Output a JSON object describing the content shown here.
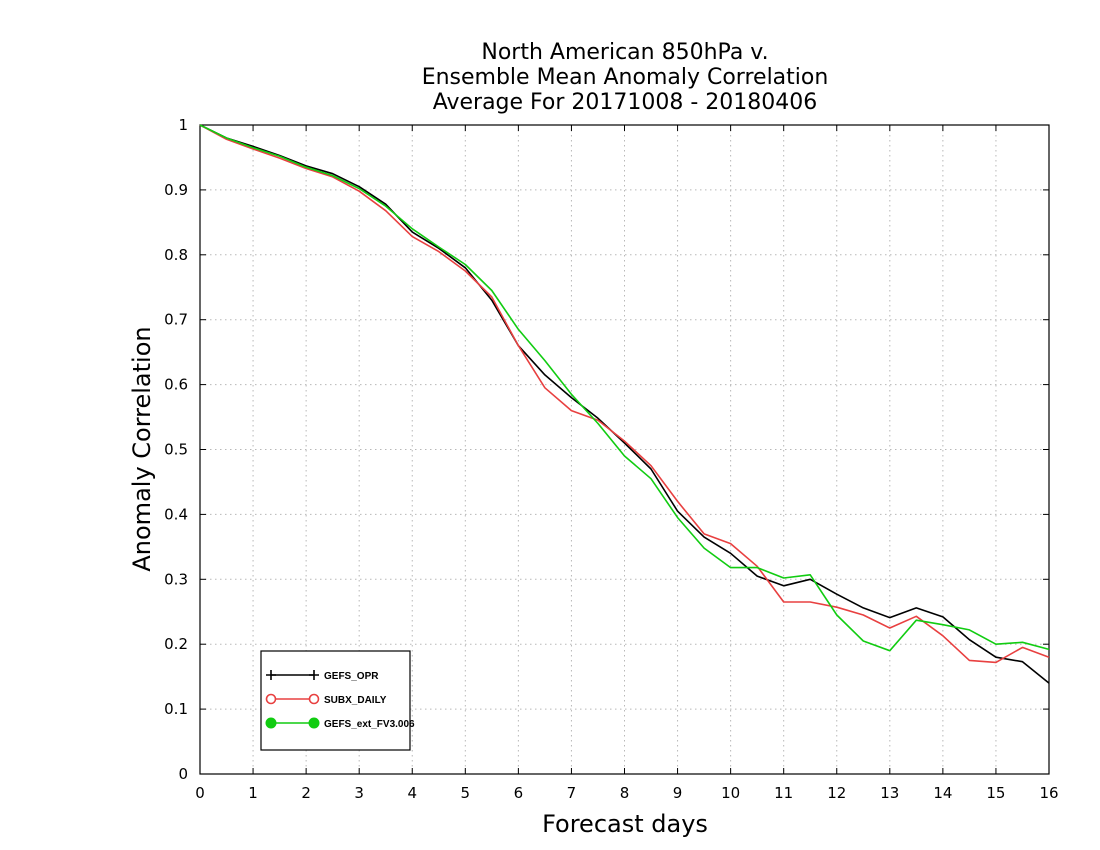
{
  "chart_data": {
    "type": "line",
    "title": [
      "North American 850hPa v.",
      "Ensemble Mean Anomaly Correlation",
      "Average For 20171008 - 20180406"
    ],
    "xlabel": "Forecast days",
    "ylabel": "Anomaly Correlation",
    "xlim": [
      0,
      16
    ],
    "ylim": [
      0,
      1
    ],
    "x_ticks": [
      "0",
      "1",
      "2",
      "3",
      "4",
      "5",
      "6",
      "7",
      "8",
      "9",
      "10",
      "11",
      "12",
      "13",
      "14",
      "15",
      "16"
    ],
    "y_ticks": [
      "0",
      "0.1",
      "0.2",
      "0.3",
      "0.4",
      "0.5",
      "0.6",
      "0.7",
      "0.8",
      "0.9",
      "1"
    ],
    "grid": true,
    "legend_position": "bottom-left",
    "x": [
      0,
      0.5,
      1,
      1.5,
      2,
      2.5,
      3,
      3.5,
      4,
      4.5,
      5,
      5.5,
      6,
      6.5,
      7,
      7.5,
      8,
      8.5,
      9,
      9.5,
      10,
      10.5,
      11,
      11.5,
      12,
      12.5,
      13,
      13.5,
      14,
      14.5,
      15,
      15.5,
      16
    ],
    "series": [
      {
        "name": "GEFS_OPR",
        "color": "#000000",
        "marker": "plus",
        "values": [
          1.0,
          0.98,
          0.967,
          0.953,
          0.937,
          0.925,
          0.905,
          0.878,
          0.835,
          0.81,
          0.78,
          0.73,
          0.66,
          0.615,
          0.58,
          0.548,
          0.51,
          0.47,
          0.405,
          0.365,
          0.34,
          0.305,
          0.29,
          0.3,
          0.277,
          0.256,
          0.241,
          0.256,
          0.242,
          0.207,
          0.18,
          0.173,
          0.14
        ]
      },
      {
        "name": "SUBX_DAILY",
        "color": "#e84040",
        "marker": "open-circle",
        "values": [
          1.0,
          0.978,
          0.963,
          0.949,
          0.933,
          0.92,
          0.898,
          0.868,
          0.828,
          0.805,
          0.775,
          0.735,
          0.66,
          0.595,
          0.56,
          0.545,
          0.513,
          0.475,
          0.42,
          0.37,
          0.355,
          0.32,
          0.265,
          0.265,
          0.257,
          0.245,
          0.225,
          0.243,
          0.213,
          0.175,
          0.172,
          0.195,
          0.18
        ]
      },
      {
        "name": "GEFS_ext_FV3.006",
        "color": "#11cc11",
        "marker": "filled-circle",
        "values": [
          1.0,
          0.98,
          0.965,
          0.952,
          0.935,
          0.922,
          0.902,
          0.875,
          0.84,
          0.812,
          0.785,
          0.745,
          0.685,
          0.637,
          0.585,
          0.54,
          0.49,
          0.455,
          0.395,
          0.348,
          0.318,
          0.318,
          0.302,
          0.307,
          0.245,
          0.205,
          0.19,
          0.237,
          0.23,
          0.222,
          0.2,
          0.203,
          0.192
        ]
      }
    ]
  }
}
